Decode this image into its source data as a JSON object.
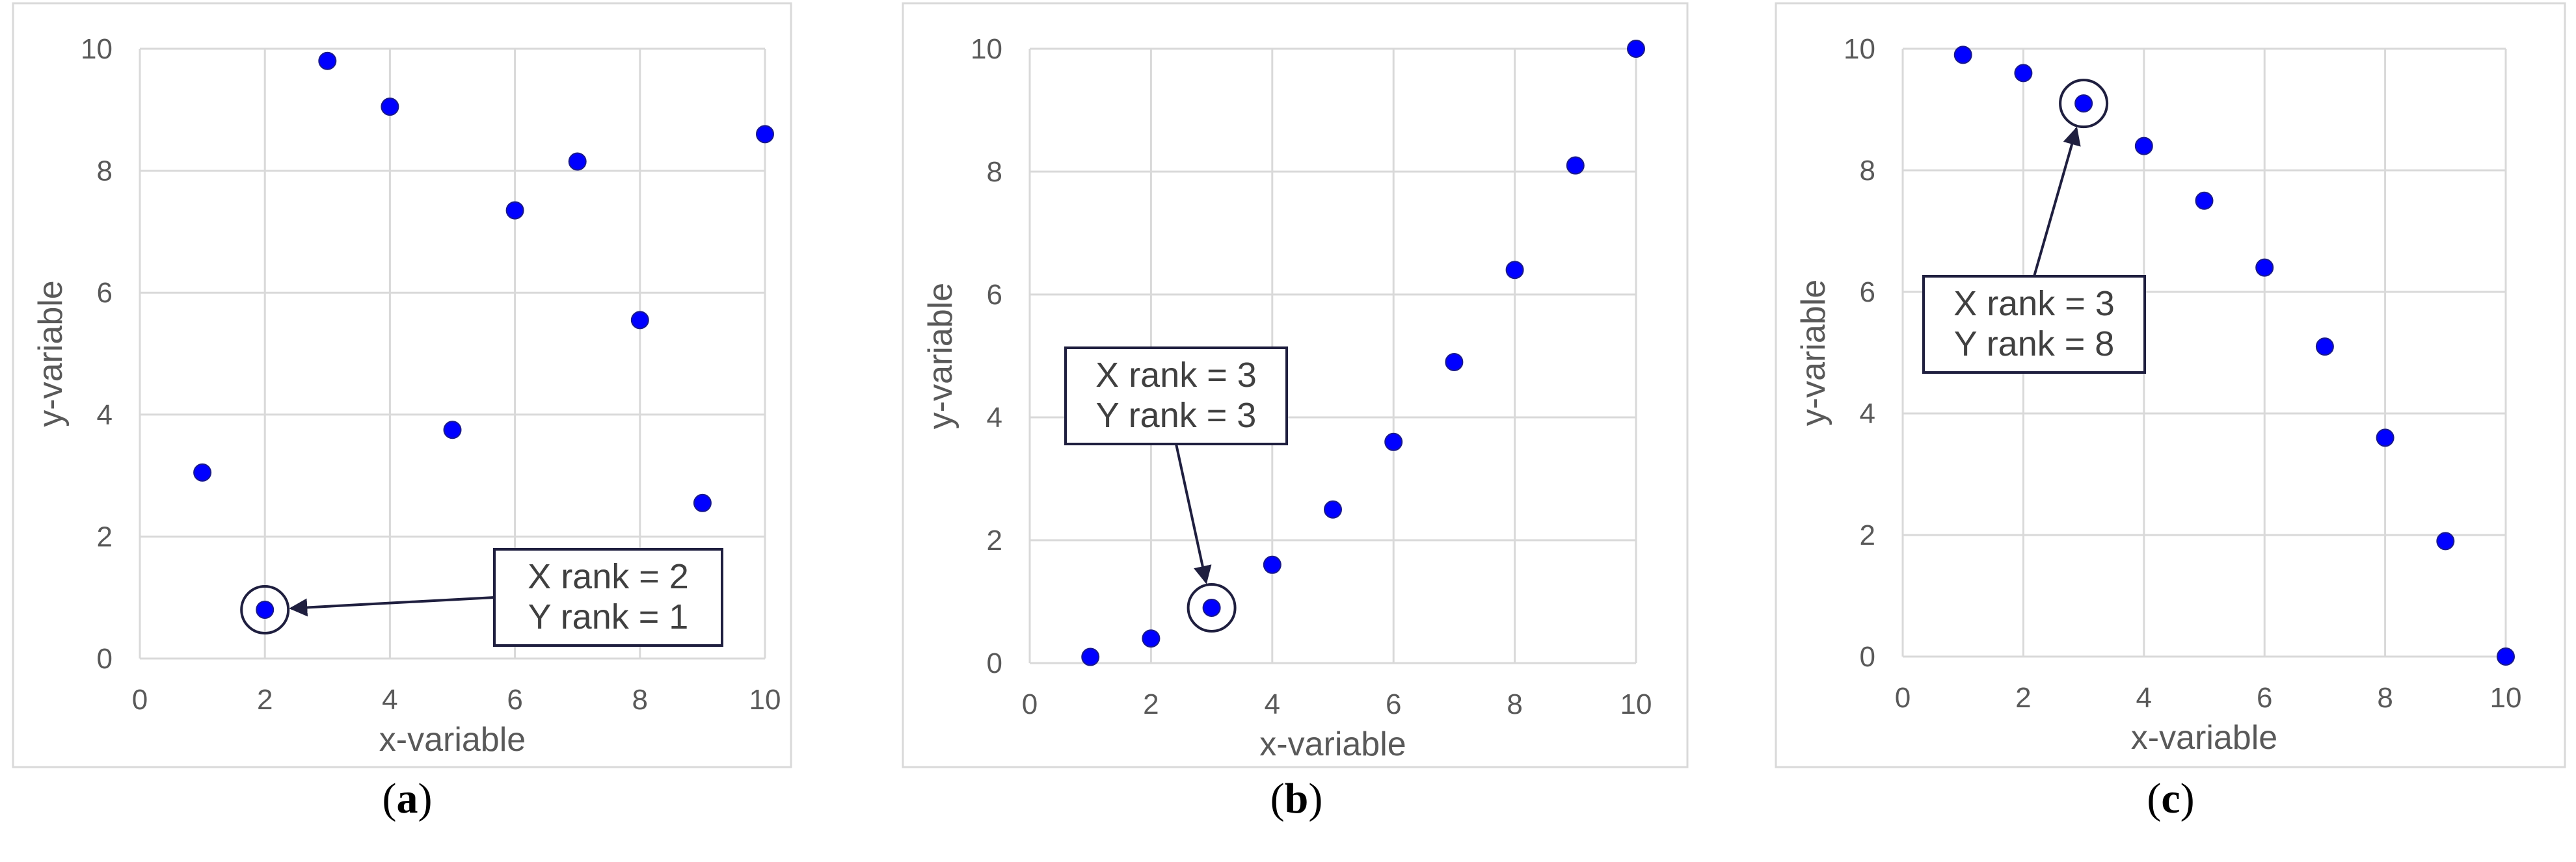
{
  "chart_data": [
    {
      "type": "scatter",
      "panel": "a",
      "xlabel": "x-variable",
      "ylabel": "y-variable",
      "xlim": [
        0,
        10
      ],
      "ylim": [
        0,
        10
      ],
      "xticks": [
        0,
        2,
        4,
        6,
        8,
        10
      ],
      "yticks": [
        0,
        2,
        4,
        6,
        8,
        10
      ],
      "grid": true,
      "points": [
        {
          "x": 1,
          "y": 3.05
        },
        {
          "x": 2,
          "y": 0.8
        },
        {
          "x": 3,
          "y": 9.8
        },
        {
          "x": 4,
          "y": 9.05
        },
        {
          "x": 5,
          "y": 3.75
        },
        {
          "x": 6,
          "y": 7.35
        },
        {
          "x": 7,
          "y": 8.15
        },
        {
          "x": 8,
          "y": 5.55
        },
        {
          "x": 9,
          "y": 2.55
        },
        {
          "x": 10,
          "y": 8.6
        }
      ],
      "annotation": {
        "point": {
          "x": 2,
          "y": 0.8
        },
        "lines": [
          "X rank = 2",
          "Y rank = 1"
        ]
      }
    },
    {
      "type": "scatter",
      "panel": "b",
      "xlabel": "x-variable",
      "ylabel": "y-variable",
      "xlim": [
        0,
        10
      ],
      "ylim": [
        0,
        10
      ],
      "xticks": [
        0,
        2,
        4,
        6,
        8,
        10
      ],
      "yticks": [
        0,
        2,
        4,
        6,
        8,
        10
      ],
      "grid": true,
      "points": [
        {
          "x": 1,
          "y": 0.1
        },
        {
          "x": 2,
          "y": 0.4
        },
        {
          "x": 3,
          "y": 0.9
        },
        {
          "x": 4,
          "y": 1.6
        },
        {
          "x": 5,
          "y": 2.5
        },
        {
          "x": 6,
          "y": 3.6
        },
        {
          "x": 7,
          "y": 4.9
        },
        {
          "x": 8,
          "y": 6.4
        },
        {
          "x": 9,
          "y": 8.1
        },
        {
          "x": 10,
          "y": 10
        }
      ],
      "annotation": {
        "point": {
          "x": 3,
          "y": 0.9
        },
        "lines": [
          "X rank = 3",
          "Y rank = 3"
        ]
      }
    },
    {
      "type": "scatter",
      "panel": "c",
      "xlabel": "x-variable",
      "ylabel": "y-variable",
      "xlim": [
        0,
        10
      ],
      "ylim": [
        0,
        10
      ],
      "xticks": [
        0,
        2,
        4,
        6,
        8,
        10
      ],
      "yticks": [
        0,
        2,
        4,
        6,
        8,
        10
      ],
      "grid": true,
      "points": [
        {
          "x": 1,
          "y": 9.9
        },
        {
          "x": 2,
          "y": 9.6
        },
        {
          "x": 3,
          "y": 9.1
        },
        {
          "x": 4,
          "y": 8.4
        },
        {
          "x": 5,
          "y": 7.5
        },
        {
          "x": 6,
          "y": 6.4
        },
        {
          "x": 7,
          "y": 5.1
        },
        {
          "x": 8,
          "y": 3.6
        },
        {
          "x": 9,
          "y": 1.9
        },
        {
          "x": 10,
          "y": 0
        }
      ],
      "annotation": {
        "point": {
          "x": 3,
          "y": 9.1
        },
        "lines": [
          "X rank = 3",
          "Y rank = 8"
        ]
      }
    }
  ],
  "panel_labels": [
    "a",
    "b",
    "c"
  ],
  "colors": {
    "point": "#0000ff",
    "grid": "#d9d9d9",
    "text": "#595959",
    "annotation": "#1f1f3f"
  }
}
